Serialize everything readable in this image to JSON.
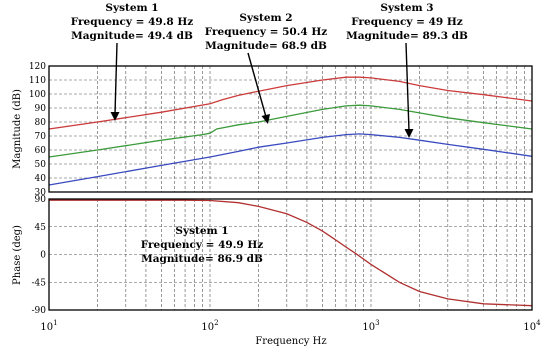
{
  "chart_data": [
    {
      "type": "line",
      "panel": "magnitude",
      "ylabel": "Magnitude (dB)",
      "xscale": "log",
      "xlim": [
        10,
        10000
      ],
      "ylim": [
        30,
        120
      ],
      "yticks": [
        "120",
        "110",
        "100",
        "90",
        "80",
        "70",
        "60",
        "50",
        "40",
        "30"
      ],
      "grid": true,
      "series": [
        {
          "color": "#cc3b3b",
          "x": [
            10,
            20,
            50,
            100,
            120,
            150,
            200,
            300,
            500,
            700,
            850,
            1000,
            1500,
            2000,
            3000,
            5000,
            10000
          ],
          "values": [
            75,
            80,
            87,
            93,
            96,
            99,
            102,
            106,
            110,
            112,
            112,
            111.5,
            109,
            106,
            102.5,
            99.5,
            95
          ]
        },
        {
          "color": "#3c9b3c",
          "x": [
            10,
            20,
            50,
            90,
            100,
            110,
            150,
            200,
            300,
            500,
            700,
            850,
            1000,
            1500,
            2000,
            3000,
            5000,
            10000
          ],
          "values": [
            55,
            60,
            67,
            71,
            72,
            75,
            78,
            80,
            84,
            89,
            91.5,
            92,
            91.5,
            89,
            86.5,
            83,
            79.5,
            75
          ]
        },
        {
          "color": "#3a4ac0",
          "x": [
            10,
            20,
            50,
            100,
            150,
            200,
            300,
            500,
            700,
            850,
            1000,
            1500,
            2000,
            3000,
            5000,
            10000
          ],
          "values": [
            35,
            41,
            49,
            55,
            59,
            62,
            65,
            69,
            71,
            71.5,
            71,
            69,
            67,
            64,
            60.5,
            55.5
          ]
        }
      ]
    },
    {
      "type": "line",
      "panel": "phase",
      "xlabel": "Frequency Hz",
      "ylabel": "Phase (deg)",
      "xscale": "log",
      "xlim": [
        10,
        10000
      ],
      "ylim": [
        -90,
        90
      ],
      "xticks": [
        {
          "base": "10",
          "exp": "1"
        },
        {
          "base": "10",
          "exp": "2"
        },
        {
          "base": "10",
          "exp": "3"
        },
        {
          "base": "10",
          "exp": "4"
        }
      ],
      "yticks": [
        "90",
        "45",
        "0",
        "-45",
        "-90"
      ],
      "grid": true,
      "series": [
        {
          "color": "#b03030",
          "x": [
            10,
            30,
            70,
            100,
            150,
            200,
            300,
            400,
            500,
            600,
            700,
            800,
            1000,
            1500,
            2000,
            3000,
            5000,
            10000
          ],
          "values": [
            88,
            88,
            88,
            87.5,
            84,
            78,
            66,
            52,
            38,
            24,
            12,
            2,
            -16,
            -45,
            -60,
            -72,
            -80,
            -83
          ]
        }
      ]
    }
  ],
  "annotations": [
    {
      "lines": [
        "System 1",
        "Frequency = 49.8 Hz",
        "Magnitude= 49.4 dB"
      ]
    },
    {
      "lines": [
        "System 2",
        "Frequency = 50.4 Hz",
        "Magnitude= 68.9 dB"
      ]
    },
    {
      "lines": [
        "System 3",
        "Frequency = 49 Hz",
        "Magnitude= 89.3 dB"
      ]
    },
    {
      "lines": [
        "System 1",
        "Frequency = 49.9 Hz",
        "Magnitude= 86.9 dB"
      ]
    }
  ]
}
